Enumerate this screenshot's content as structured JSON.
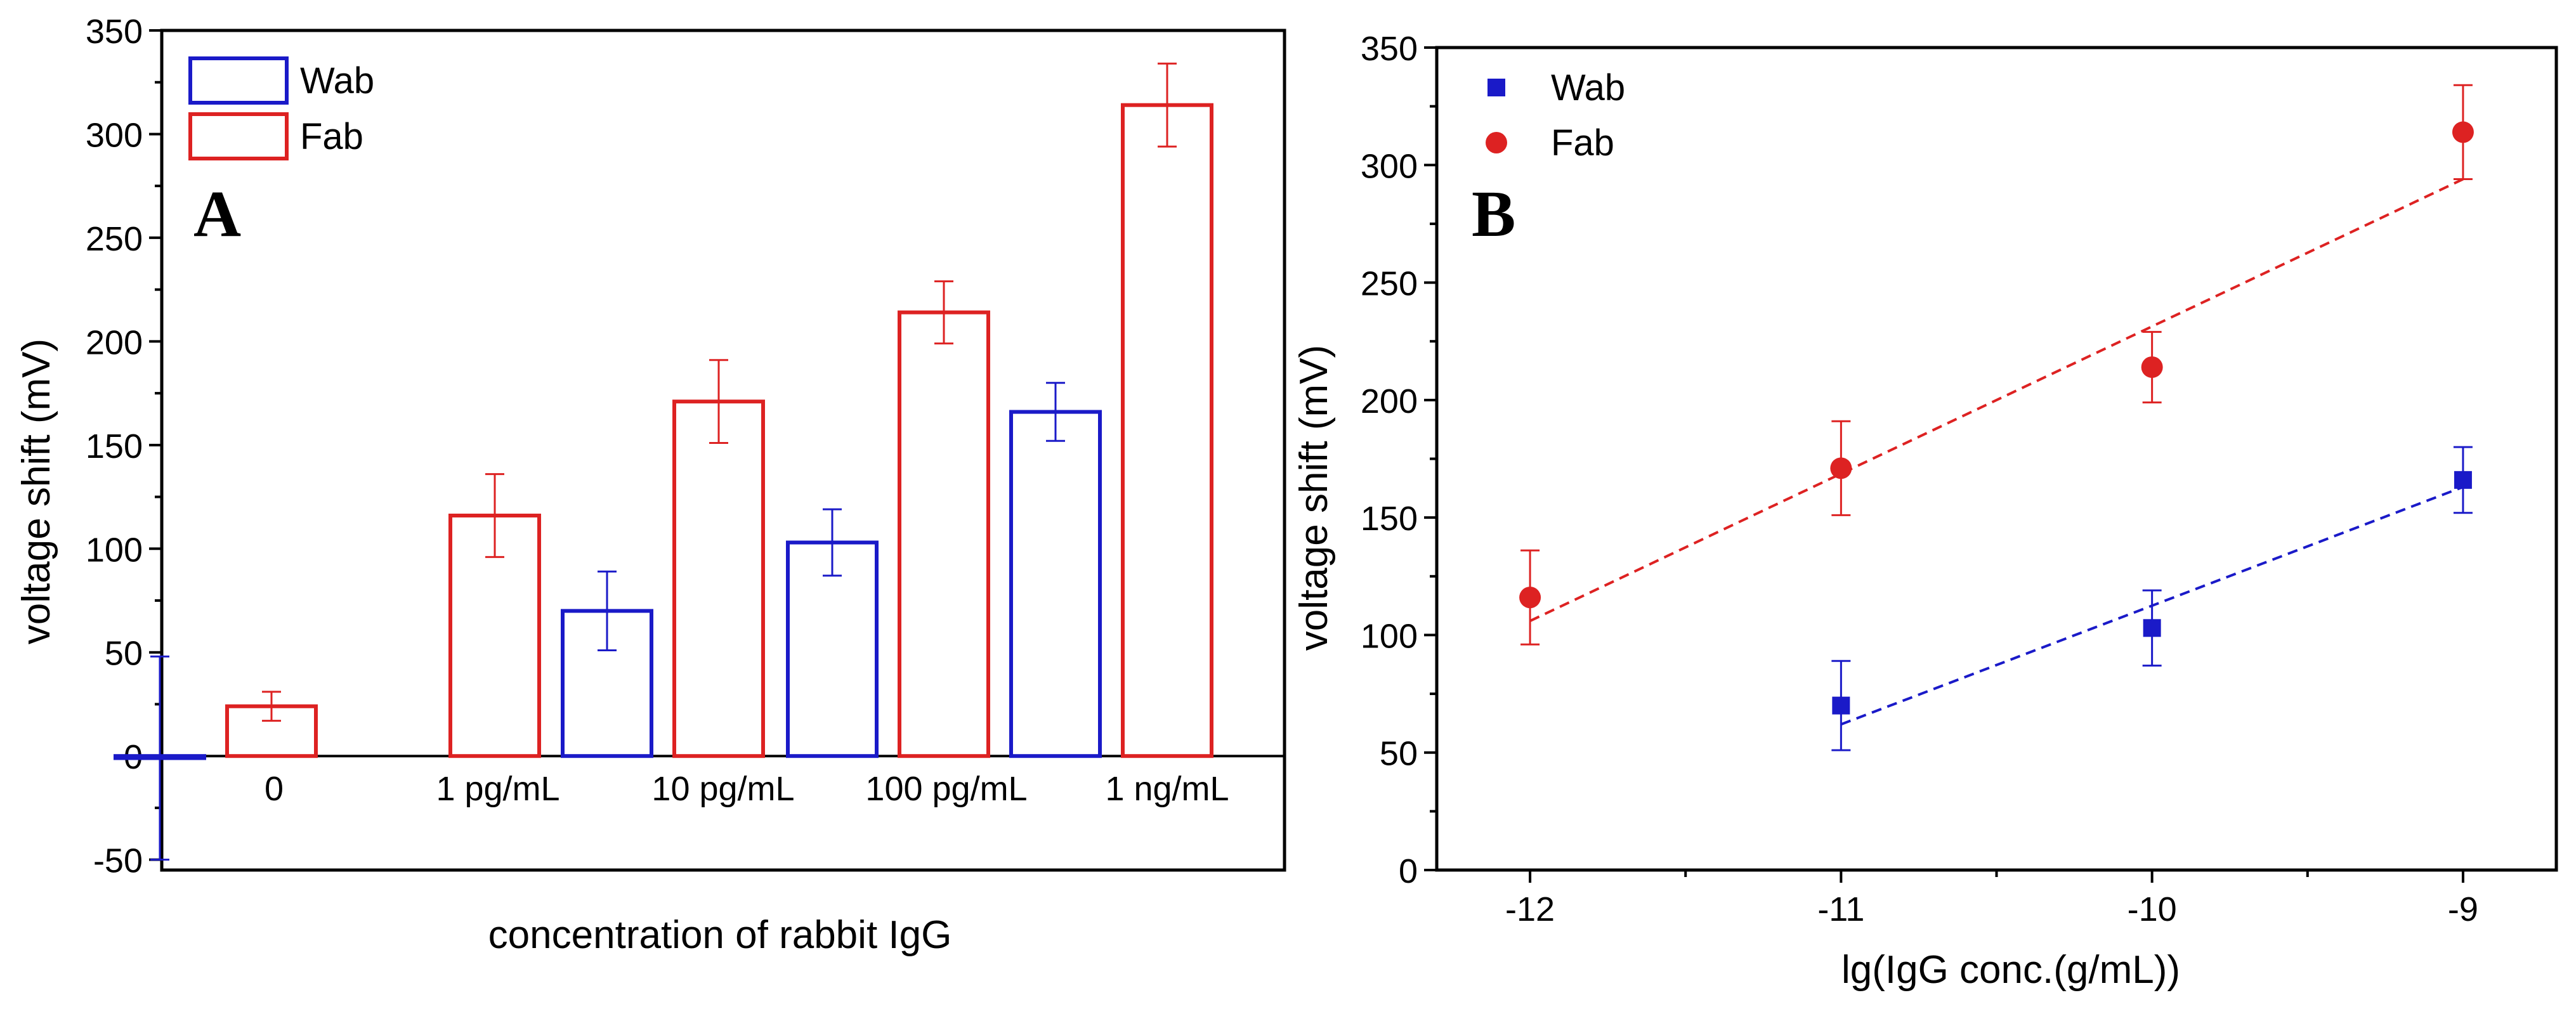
{
  "chart_data": [
    {
      "type": "bar",
      "panel_label": "A",
      "xlabel": "concentration of rabbit IgG",
      "ylabel": "voltage shift (mV)",
      "ylim": [
        -55,
        350
      ],
      "yticks": [
        -50,
        0,
        50,
        100,
        150,
        200,
        250,
        300,
        350
      ],
      "categories": [
        "0",
        "1 pg/mL",
        "10 pg/mL",
        "100 pg/mL",
        "1 ng/mL"
      ],
      "series": [
        {
          "name": "Wab",
          "color": "#1a1ac8",
          "values": [
            -1,
            null,
            70,
            103,
            166
          ],
          "errors": [
            49,
            null,
            19,
            16,
            14
          ]
        },
        {
          "name": "Fab",
          "color": "#dd2222",
          "values": [
            24,
            116,
            171,
            214,
            314
          ],
          "errors": [
            7,
            20,
            20,
            15,
            20
          ]
        }
      ],
      "legend": "top-left"
    },
    {
      "type": "scatter",
      "panel_label": "B",
      "xlabel": "lg(IgG conc.(g/mL))",
      "ylabel": "voltage shift (mV)",
      "xlim": [
        -12.3,
        -8.7
      ],
      "ylim": [
        0,
        350
      ],
      "xticks": [
        -12,
        -11,
        -10,
        -9
      ],
      "yticks": [
        0,
        50,
        100,
        150,
        200,
        250,
        300,
        350
      ],
      "series": [
        {
          "name": "Wab",
          "color": "#1a1ac8",
          "marker": "square",
          "x": [
            -11,
            -10,
            -9
          ],
          "y": [
            70,
            103,
            166
          ],
          "errors": [
            19,
            16,
            14
          ],
          "fit": {
            "x": [
              -11,
              -9
            ],
            "y": [
              62,
              163
            ]
          }
        },
        {
          "name": "Fab",
          "color": "#dd2222",
          "marker": "circle",
          "x": [
            -12,
            -11,
            -10,
            -9
          ],
          "y": [
            116,
            171,
            214,
            314
          ],
          "errors": [
            20,
            20,
            15,
            20
          ],
          "fit": {
            "x": [
              -12,
              -9
            ],
            "y": [
              106,
              294
            ]
          }
        }
      ],
      "legend": "top-left"
    }
  ]
}
